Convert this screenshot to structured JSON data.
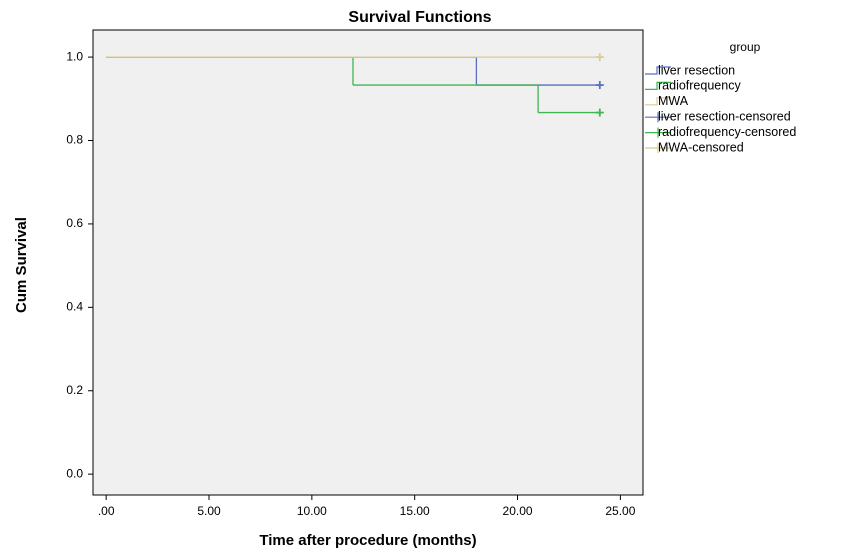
{
  "chart_data": {
    "type": "step",
    "title": "Survival Functions",
    "x_label": "Time after procedure (months)",
    "y_label": "Cum Survival",
    "legend_title": "group",
    "legend_position": "right",
    "xlim": [
      -0.64,
      26.1
    ],
    "ylim": [
      -0.05,
      1.065
    ],
    "xticks": [
      {
        "value": 0,
        "label": ".00"
      },
      {
        "value": 5,
        "label": "5.00"
      },
      {
        "value": 10,
        "label": "10.00"
      },
      {
        "value": 15,
        "label": "15.00"
      },
      {
        "value": 20,
        "label": "20.00"
      },
      {
        "value": 25,
        "label": "25.00"
      }
    ],
    "yticks": [
      {
        "value": 0,
        "label": "0.0"
      },
      0.2,
      0.4,
      0.6,
      0.8,
      {
        "value": 1,
        "label": "1.0"
      }
    ],
    "series": [
      {
        "name": "liver resection",
        "color": "#5b6fc0",
        "kind": "step",
        "x": [
          0,
          18,
          24
        ],
        "values": [
          1,
          0.933,
          0.933
        ]
      },
      {
        "name": "radiofrequency",
        "color": "#3fb650",
        "kind": "step",
        "x": [
          0,
          12,
          21,
          24
        ],
        "values": [
          1,
          0.933,
          0.867,
          0.867
        ]
      },
      {
        "name": "MWA",
        "color": "#d8cc94",
        "kind": "step",
        "x": [
          0,
          24
        ],
        "values": [
          1,
          1
        ]
      },
      {
        "name": "liver resection-censored",
        "color": "#5b6fc0",
        "kind": "censored",
        "x": [
          24
        ],
        "values": [
          0.933
        ]
      },
      {
        "name": "radiofrequency-censored",
        "color": "#3fb650",
        "kind": "censored",
        "x": [
          24
        ],
        "values": [
          0.867
        ]
      },
      {
        "name": "MWA-censored",
        "color": "#d8cc94",
        "kind": "censored",
        "x": [
          24
        ],
        "values": [
          1
        ]
      }
    ]
  }
}
